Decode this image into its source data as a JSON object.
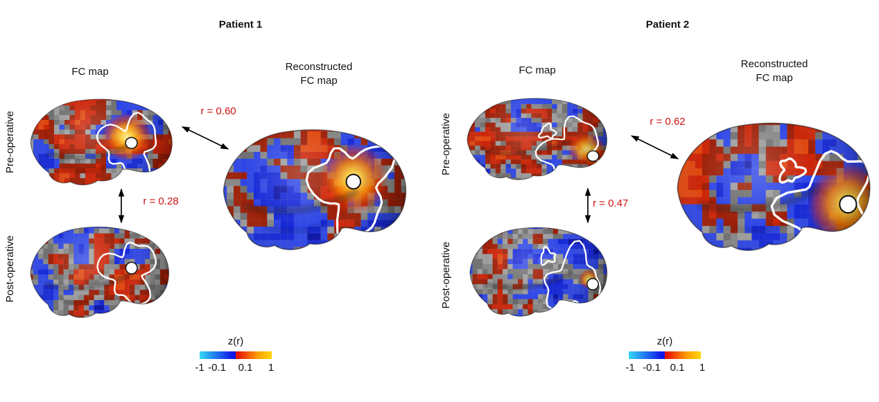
{
  "figure": {
    "background": "#ffffff",
    "red_annotation_color": "#cc1111",
    "colorbar_gradient": [
      "#35d8f5",
      "#0d15e8",
      "#e81600",
      "#ff9c00",
      "#ffd60a"
    ],
    "patients": [
      {
        "title": "Patient 1",
        "fc_map_label": "FC map",
        "reconstructed_label_line1": "Reconstructed",
        "reconstructed_label_line2": "FC map",
        "pre_label": "Pre-operative",
        "post_label": "Post-operative",
        "r_reconstructed": "r = 0.60",
        "r_pre_post": "r = 0.28",
        "colorbar": {
          "label": "z(r)",
          "ticks": [
            "-1",
            "-0.1",
            "0.1",
            "1"
          ]
        }
      },
      {
        "title": "Patient 2",
        "fc_map_label": "FC map",
        "reconstructed_label_line1": "Reconstructed",
        "reconstructed_label_line2": "FC map",
        "pre_label": "Pre-operative",
        "post_label": "Post-operative",
        "r_reconstructed": "r = 0.62",
        "r_pre_post": "r = 0.47",
        "colorbar": {
          "label": "z(r)",
          "ticks": [
            "-1",
            "-0.1",
            "0.1",
            "1"
          ]
        }
      }
    ]
  }
}
